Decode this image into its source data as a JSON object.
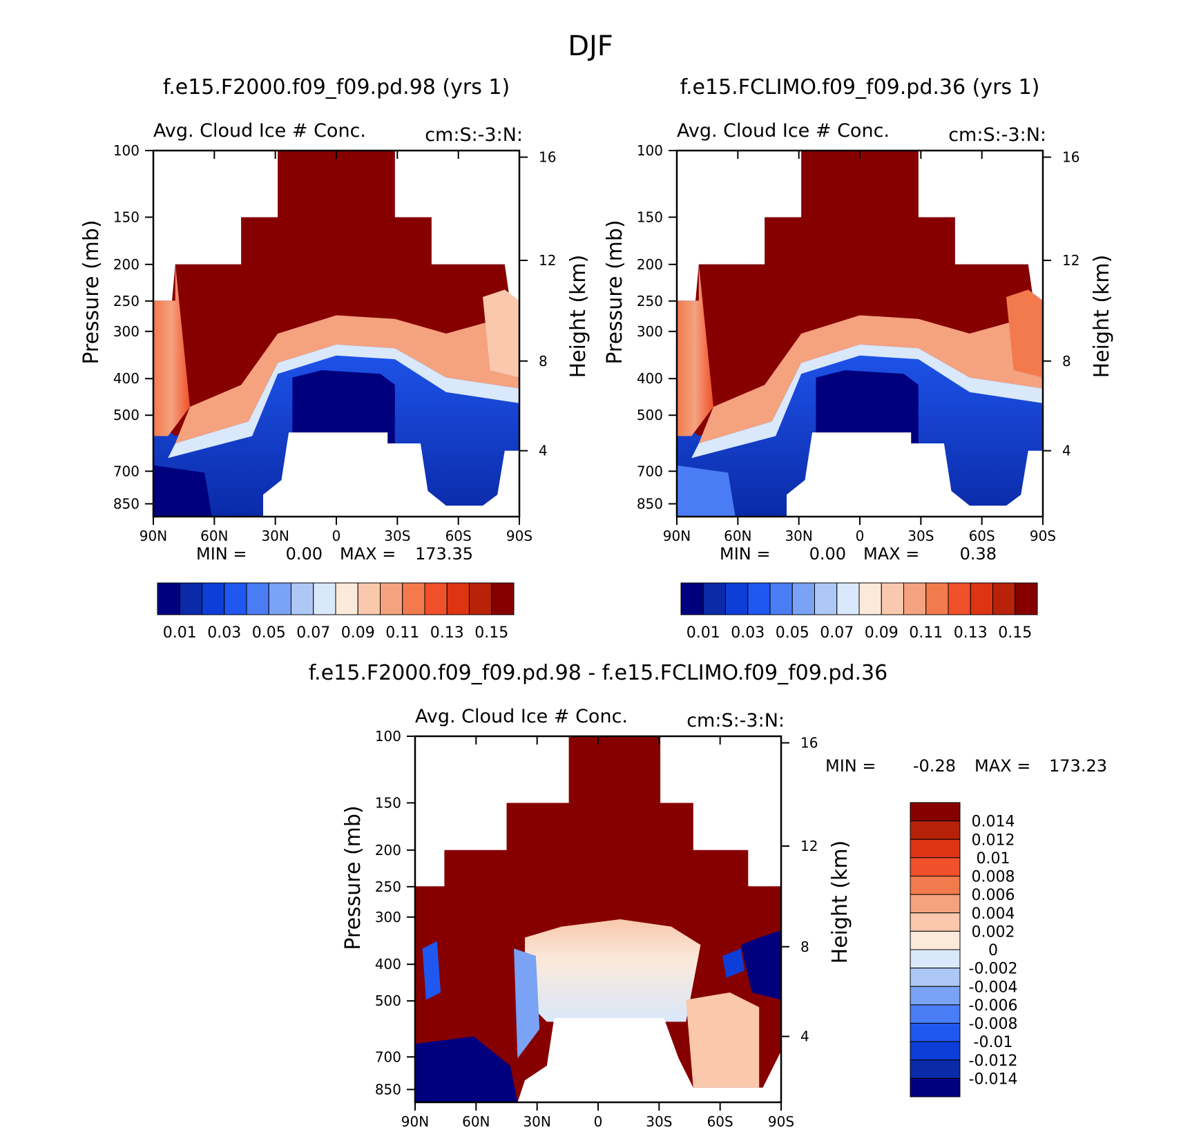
{
  "main_title": "DJF",
  "colors": {
    "cbar_abs": [
      "#00007f",
      "#0a2aa8",
      "#0d3ed8",
      "#2057f0",
      "#4a7df5",
      "#7aa2f5",
      "#aec8f5",
      "#d9e8fa",
      "#fbe9da",
      "#f9c8ad",
      "#f5a27f",
      "#f27a4d",
      "#f0502a",
      "#dd3412",
      "#b82208",
      "#870000"
    ],
    "cbar_diff": [
      "#870000",
      "#b52208",
      "#dd3412",
      "#f0502a",
      "#f27a4d",
      "#f5a27f",
      "#f9c8ad",
      "#fbe9da",
      "#d9e8fa",
      "#aec8f5",
      "#7aa2f5",
      "#4a7df5",
      "#2057f0",
      "#0d3ed8",
      "#0a2aa8",
      "#00007f"
    ],
    "field_hi": "#870000",
    "field_lo": "#00007f"
  },
  "chart_data": [
    {
      "type": "heatmap",
      "title": "f.e15.F2000.f09_f09.pd.98 (yrs 1)",
      "subtitle_left": "Avg. Cloud Ice # Conc.",
      "subtitle_right": "cm:S:-3:N:",
      "xlabel": "",
      "ylabel": "Pressure (mb)",
      "ylabel_right": "Height (km)",
      "x_ticks": [
        "90N",
        "60N",
        "30N",
        "0",
        "30S",
        "60S",
        "90S"
      ],
      "y_ticks": [
        "100",
        "150",
        "200",
        "250",
        "300",
        "400",
        "500",
        "700",
        "850"
      ],
      "y_ticks_right": [
        "16",
        "12",
        "8",
        "4"
      ],
      "stats": {
        "min_label": "MIN =",
        "min_value": "0.00",
        "max_label": "MAX =",
        "max_value": "173.35"
      },
      "colorbar_labels": [
        "0.01",
        "0.03",
        "0.05",
        "0.07",
        "0.09",
        "0.11",
        "0.13",
        "0.15"
      ],
      "colorbar_levels": [
        0.01,
        0.02,
        0.03,
        0.04,
        0.05,
        0.06,
        0.07,
        0.08,
        0.09,
        0.1,
        0.11,
        0.12,
        0.13,
        0.14,
        0.15
      ]
    },
    {
      "type": "heatmap",
      "title": "f.e15.FCLIMO.f09_f09.pd.36 (yrs 1)",
      "subtitle_left": "Avg. Cloud Ice # Conc.",
      "subtitle_right": "cm:S:-3:N:",
      "xlabel": "",
      "ylabel": "Pressure (mb)",
      "ylabel_right": "Height (km)",
      "x_ticks": [
        "90N",
        "60N",
        "30N",
        "0",
        "30S",
        "60S",
        "90S"
      ],
      "y_ticks": [
        "100",
        "150",
        "200",
        "250",
        "300",
        "400",
        "500",
        "700",
        "850"
      ],
      "y_ticks_right": [
        "16",
        "12",
        "8",
        "4"
      ],
      "stats": {
        "min_label": "MIN =",
        "min_value": "0.00",
        "max_label": "MAX =",
        "max_value": "0.38"
      },
      "colorbar_labels": [
        "0.01",
        "0.03",
        "0.05",
        "0.07",
        "0.09",
        "0.11",
        "0.13",
        "0.15"
      ],
      "colorbar_levels": [
        0.01,
        0.02,
        0.03,
        0.04,
        0.05,
        0.06,
        0.07,
        0.08,
        0.09,
        0.1,
        0.11,
        0.12,
        0.13,
        0.14,
        0.15
      ]
    },
    {
      "type": "heatmap",
      "title": "f.e15.F2000.f09_f09.pd.98 - f.e15.FCLIMO.f09_f09.pd.36",
      "subtitle_left": "Avg. Cloud Ice # Conc.",
      "subtitle_right": "cm:S:-3:N:",
      "xlabel": "",
      "ylabel": "Pressure (mb)",
      "ylabel_right": "Height (km)",
      "x_ticks": [
        "90N",
        "60N",
        "30N",
        "0",
        "30S",
        "60S",
        "90S"
      ],
      "y_ticks": [
        "100",
        "150",
        "200",
        "250",
        "300",
        "400",
        "500",
        "700",
        "850"
      ],
      "y_ticks_right": [
        "16",
        "12",
        "8",
        "4"
      ],
      "stats": {
        "min_label": "MIN =",
        "min_value": "-0.28",
        "max_label": "MAX =",
        "max_value": "173.23"
      },
      "colorbar_labels": [
        "0.014",
        "0.012",
        "0.01",
        "0.008",
        "0.006",
        "0.004",
        "0.002",
        "0",
        "-0.002",
        "-0.004",
        "-0.006",
        "-0.008",
        "-0.01",
        "-0.012",
        "-0.014"
      ],
      "colorbar_levels": [
        0.014,
        0.012,
        0.01,
        0.008,
        0.006,
        0.004,
        0.002,
        0,
        -0.002,
        -0.004,
        -0.006,
        -0.008,
        -0.01,
        -0.012,
        -0.014
      ]
    }
  ]
}
